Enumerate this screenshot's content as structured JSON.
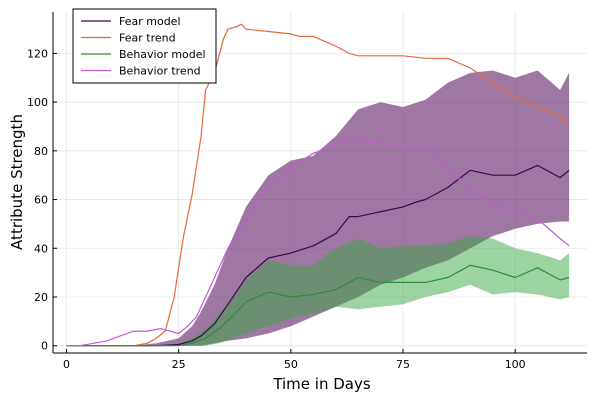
{
  "chart_data": {
    "type": "line",
    "xlabel": "Time in Days",
    "ylabel": "Attribute Strength",
    "xlim": [
      -3,
      116
    ],
    "ylim": [
      -3,
      137
    ],
    "xticks": [
      0,
      25,
      50,
      75,
      100
    ],
    "yticks": [
      0,
      20,
      40,
      60,
      80,
      100,
      120
    ],
    "grid": true,
    "legend_position": "top-left",
    "bands": [
      {
        "name": "Fear model band",
        "color": "#6b2e72",
        "opacity": 0.65,
        "x": [
          0,
          10,
          15,
          20,
          25,
          28,
          30,
          33,
          36,
          40,
          45,
          50,
          55,
          60,
          65,
          70,
          75,
          80,
          85,
          90,
          95,
          100,
          105,
          110,
          112
        ],
        "lower": [
          0,
          0,
          0,
          0,
          0,
          0,
          0,
          1,
          2,
          3,
          5,
          8,
          12,
          16,
          20,
          25,
          28,
          32,
          35,
          40,
          45,
          48,
          50,
          51,
          51
        ],
        "upper": [
          0,
          0,
          0,
          1,
          3,
          8,
          14,
          25,
          40,
          57,
          70,
          76,
          78,
          86,
          97,
          100,
          98,
          101,
          108,
          112,
          113,
          110,
          113,
          105,
          112
        ]
      },
      {
        "name": "Behavior model band",
        "color": "#3aa845",
        "opacity": 0.5,
        "x": [
          0,
          10,
          20,
          25,
          28,
          31,
          34,
          37,
          40,
          45,
          50,
          55,
          60,
          65,
          70,
          75,
          80,
          85,
          90,
          95,
          100,
          105,
          110,
          112
        ],
        "lower": [
          0,
          0,
          0,
          0,
          0,
          0,
          1,
          3,
          5,
          8,
          11,
          13,
          16,
          15,
          16,
          17,
          20,
          22,
          25,
          21,
          22,
          21,
          19,
          20
        ],
        "upper": [
          0,
          0,
          0,
          1,
          3,
          7,
          13,
          19,
          27,
          35,
          33,
          33,
          40,
          44,
          40,
          41,
          41,
          42,
          45,
          44,
          40,
          38,
          35,
          38
        ]
      }
    ],
    "series": [
      {
        "name": "Fear model",
        "color": "#3a0a46",
        "x": [
          0,
          10,
          15,
          20,
          25,
          28,
          30,
          33,
          36,
          40,
          45,
          50,
          55,
          60,
          63,
          65,
          70,
          75,
          78,
          80,
          85,
          90,
          95,
          100,
          105,
          110,
          112
        ],
        "y": [
          0,
          0,
          0,
          0,
          0.5,
          2,
          4,
          9,
          17,
          28,
          36,
          38,
          41,
          46,
          53,
          53,
          55,
          57,
          59,
          60,
          65,
          72,
          70,
          70,
          74,
          69,
          72
        ]
      },
      {
        "name": "Fear trend",
        "color": "#e8673b",
        "x": [
          0,
          10,
          15,
          18,
          20,
          22,
          24,
          26,
          28,
          30,
          31,
          33,
          35,
          36,
          38,
          39,
          40,
          45,
          50,
          52,
          55,
          60,
          63,
          65,
          70,
          75,
          80,
          85,
          90,
          95,
          100,
          105,
          110,
          112
        ],
        "y": [
          0,
          0,
          0,
          1,
          3,
          6,
          20,
          44,
          62,
          86,
          105,
          112,
          126,
          130,
          131,
          132,
          130,
          129,
          128,
          127,
          127,
          123,
          120,
          119,
          119,
          119,
          118,
          118,
          114,
          108,
          102,
          98,
          94,
          91
        ]
      },
      {
        "name": "Behavior model",
        "color": "#2e8b3d",
        "x": [
          0,
          10,
          20,
          25,
          28,
          31,
          34,
          37,
          40,
          45,
          50,
          55,
          60,
          65,
          70,
          75,
          80,
          85,
          90,
          95,
          100,
          105,
          110,
          112
        ],
        "y": [
          0,
          0,
          0,
          0,
          1,
          3,
          7,
          12,
          18,
          22,
          20,
          21,
          23,
          28,
          26,
          26,
          26,
          28,
          33,
          31,
          28,
          32,
          27,
          28
        ]
      },
      {
        "name": "Behavior trend",
        "color": "#c25ad6",
        "x": [
          0,
          3,
          6,
          9,
          12,
          15,
          18,
          21,
          23,
          25,
          27,
          29,
          31,
          33,
          36,
          40,
          45,
          50,
          55,
          58,
          62,
          65,
          70,
          75,
          78,
          80,
          83,
          85,
          88,
          90,
          95,
          100,
          105,
          110,
          112
        ],
        "y": [
          0,
          0,
          1,
          2,
          4,
          6,
          6,
          7,
          6,
          5,
          8,
          12,
          20,
          28,
          40,
          52,
          65,
          73,
          79,
          81,
          85,
          84,
          83,
          82,
          81,
          82,
          76,
          72,
          68,
          64,
          58,
          55,
          52,
          44,
          41
        ]
      }
    ]
  }
}
